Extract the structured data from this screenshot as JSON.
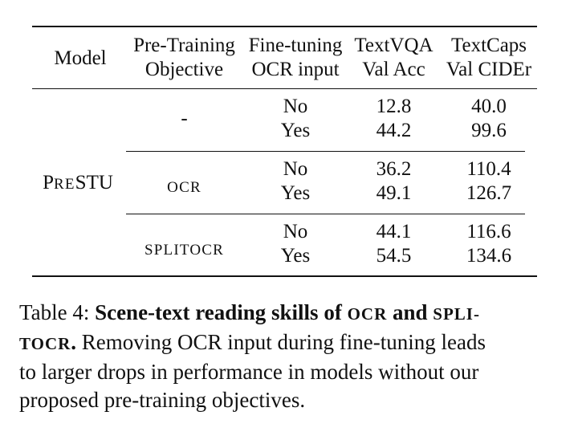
{
  "table": {
    "headers": {
      "model": "Model",
      "objective_line1": "Pre-Training",
      "objective_line2": "Objective",
      "ocr_line1": "Fine-tuning",
      "ocr_line2": "OCR input",
      "textvqa_line1": "TextVQA",
      "textvqa_line2": "Val Acc",
      "textcaps_line1": "TextCaps",
      "textcaps_line2": "Val CIDEr"
    },
    "model_name_first": "P",
    "model_name_small": "RE",
    "model_name_rest": "STU",
    "groups": [
      {
        "objective": "-",
        "rows": [
          {
            "ocr_input": "No",
            "textvqa": "12.8",
            "textcaps": "40.0"
          },
          {
            "ocr_input": "Yes",
            "textvqa": "44.2",
            "textcaps": "99.6"
          }
        ]
      },
      {
        "objective": "OCR",
        "rows": [
          {
            "ocr_input": "No",
            "textvqa": "36.2",
            "textcaps": "110.4"
          },
          {
            "ocr_input": "Yes",
            "textvqa": "49.1",
            "textcaps": "126.7"
          }
        ]
      },
      {
        "objective": "SPLITOCR",
        "rows": [
          {
            "ocr_input": "No",
            "textvqa": "44.1",
            "textcaps": "116.6"
          },
          {
            "ocr_input": "Yes",
            "textvqa": "54.5",
            "textcaps": "134.6"
          }
        ]
      }
    ]
  },
  "caption": {
    "label": "Table 4:",
    "bold_part1": "Scene-text reading skills of",
    "bold_ocr": "OCR",
    "bold_and": "and",
    "bold_split1": "SPLI-",
    "bold_split2": "TOCR",
    "bold_period": ".",
    "line2_rest": "Removing OCR input during fine-tuning leads",
    "line3": "to larger drops in performance in models without our",
    "line4": "proposed pre-training objectives."
  }
}
